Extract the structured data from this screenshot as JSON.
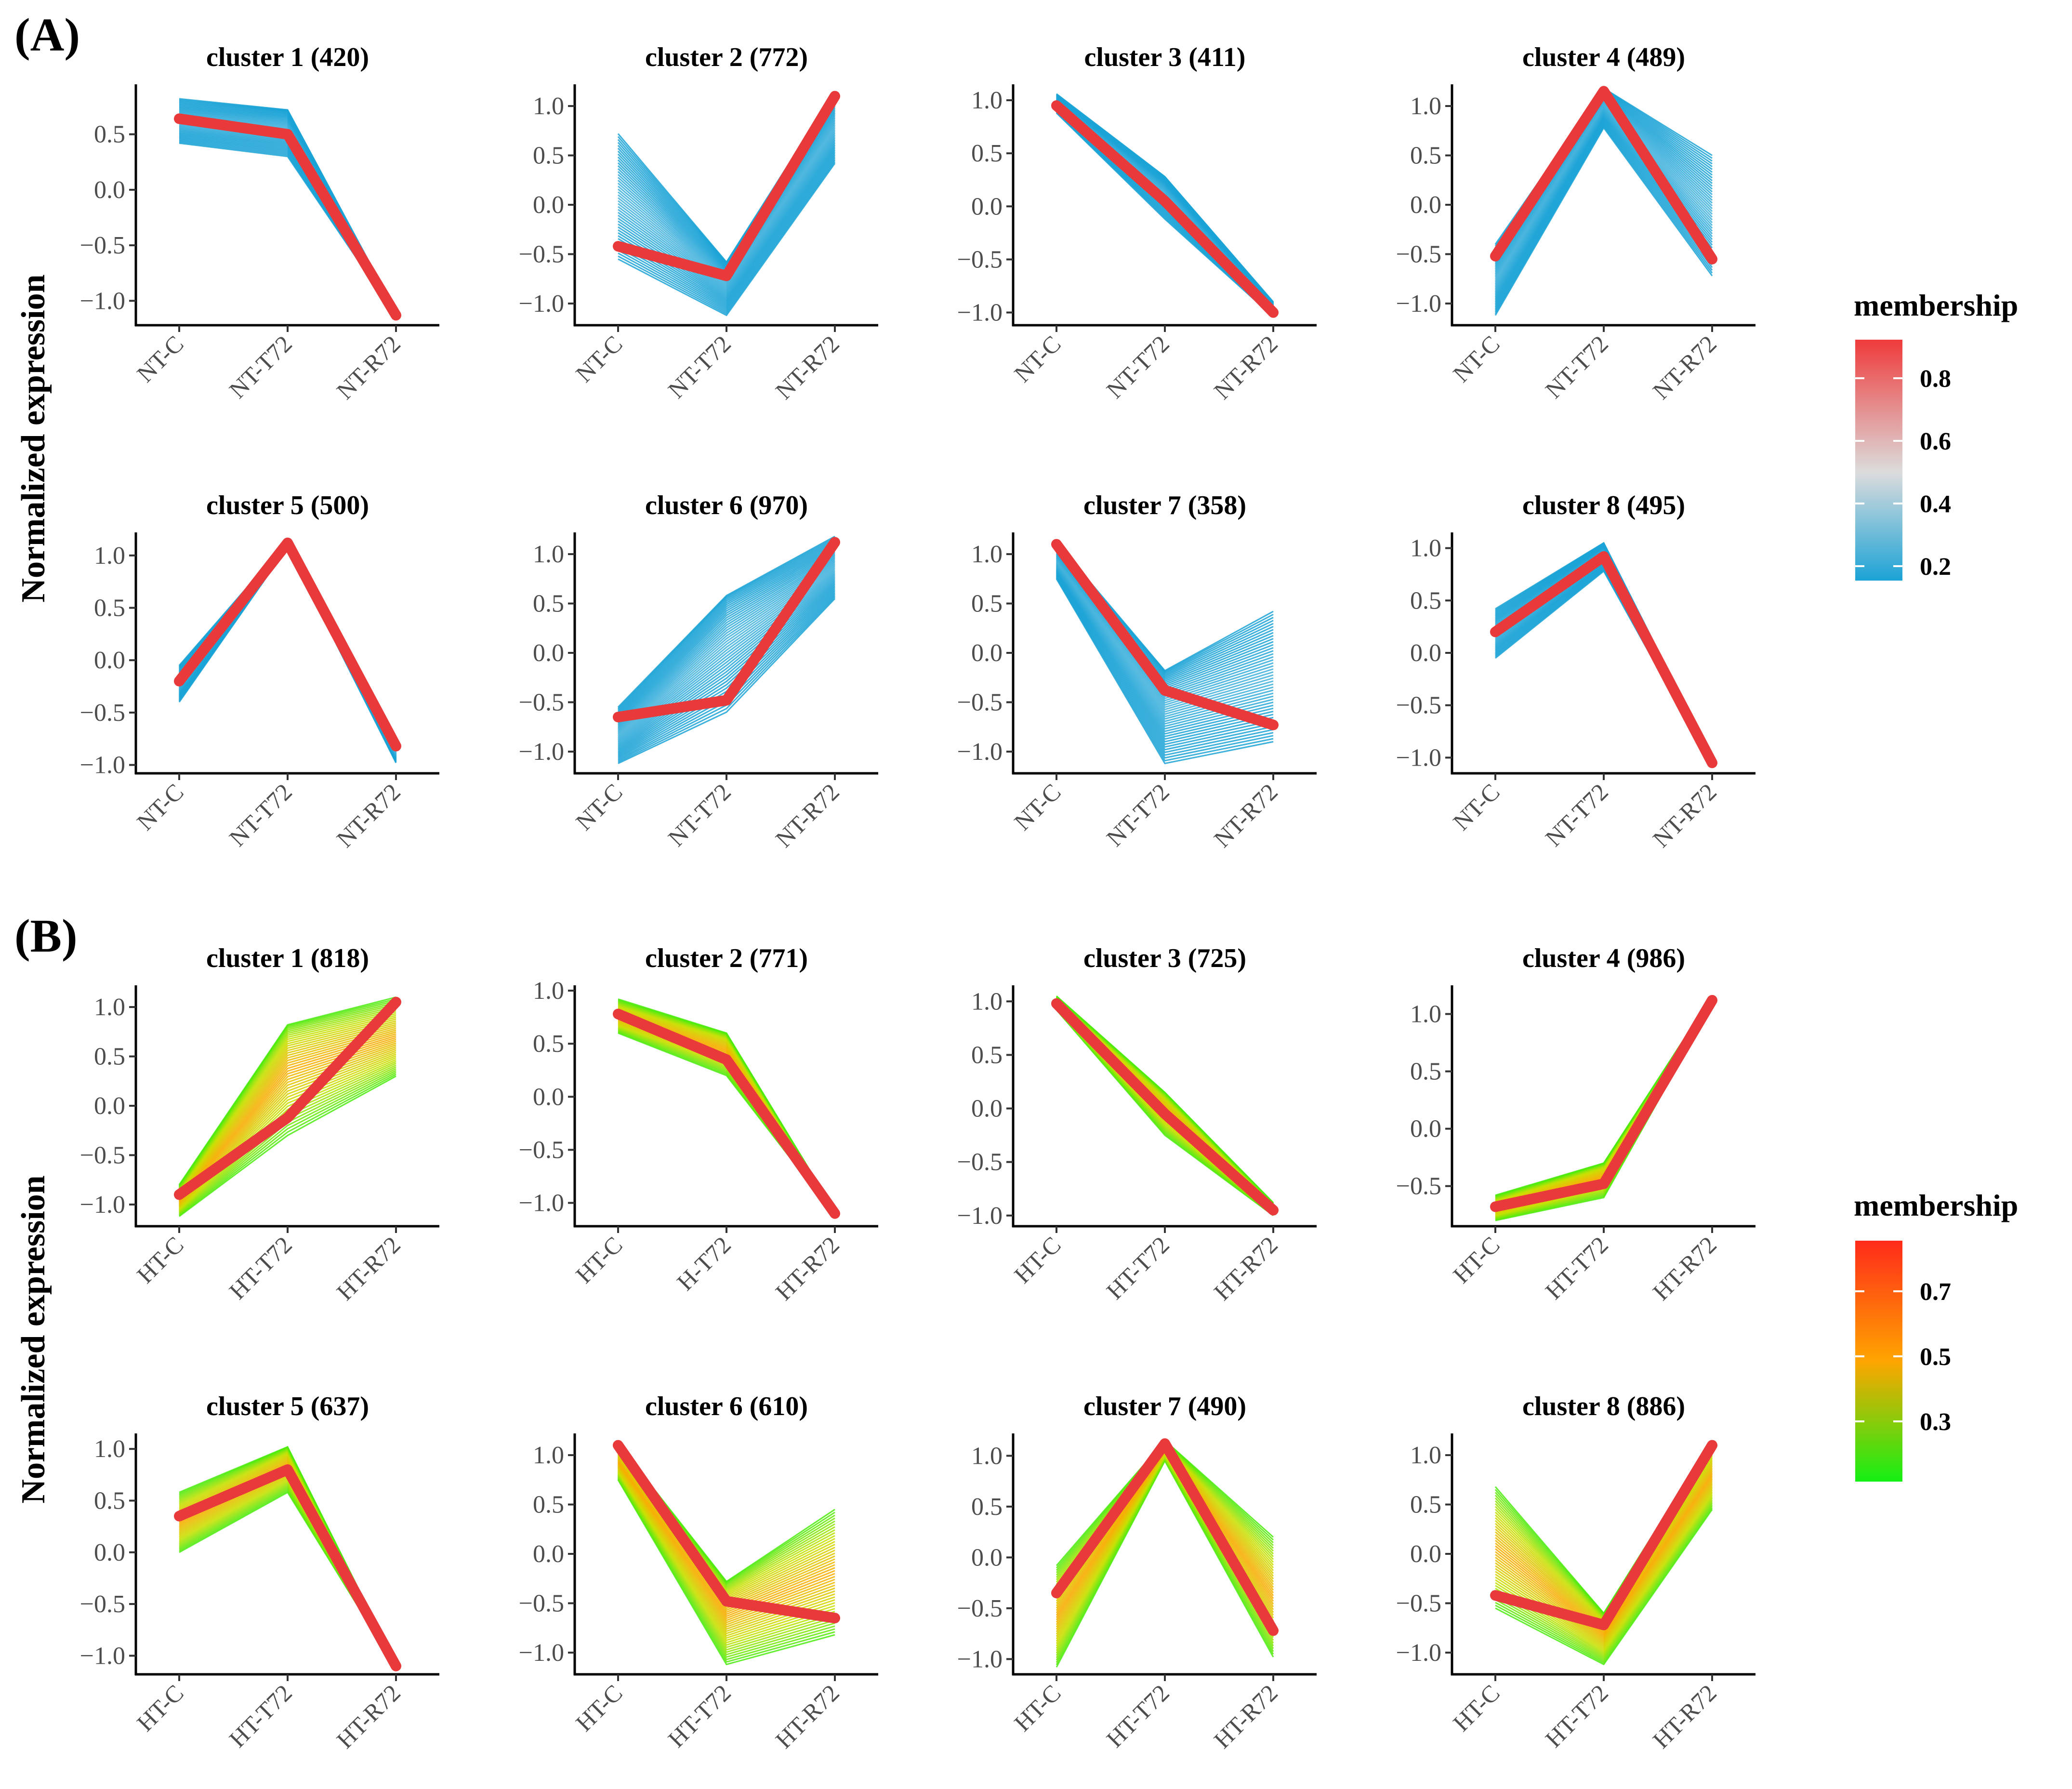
{
  "figure": {
    "panel_a_label": "(A)",
    "panel_b_label": "(B)",
    "ylabel": "Normalized expression",
    "legend_title": "membership",
    "legend_a_ticks": [
      "0.8",
      "0.6",
      "0.4",
      "0.2"
    ],
    "legend_b_ticks": [
      "0.7",
      "0.5",
      "0.3"
    ],
    "colors": {
      "a_low": "#1ba3d6",
      "a_mid": "#dcdcdc",
      "a_high": "#ef3b3b",
      "b_low": "#14f014",
      "b_mid": "#ffa500",
      "b_high": "#ff2a1a",
      "center": "#e83a3a"
    }
  },
  "chart_data": [
    {
      "type": "line",
      "panel": "A",
      "title": "cluster 1 (420)",
      "categories": [
        "NT-C",
        "NT-T72",
        "NT-R72"
      ],
      "yticks": [
        0.5,
        0.0,
        -0.5,
        -1.0
      ],
      "ytick_labels": [
        "0.5",
        "0.0",
        "−0.5",
        "−1.0"
      ],
      "ylim": [
        -1.22,
        0.95
      ],
      "center": [
        0.64,
        0.5,
        -1.13
      ],
      "lows": [
        0.42,
        0.3,
        -1.14
      ],
      "highs": [
        0.82,
        0.72,
        -1.1
      ]
    },
    {
      "type": "line",
      "panel": "A",
      "title": "cluster 2 (772)",
      "categories": [
        "NT-C",
        "NT-T72",
        "NT-R72"
      ],
      "yticks": [
        1.0,
        0.5,
        0.0,
        -0.5,
        -1.0
      ],
      "ytick_labels": [
        "1.0",
        "0.5",
        "0.0",
        "−0.5",
        "−1.0"
      ],
      "ylim": [
        -1.22,
        1.22
      ],
      "center": [
        -0.42,
        -0.72,
        1.1
      ],
      "lows": [
        -0.55,
        -1.12,
        0.42
      ],
      "highs": [
        0.72,
        -0.58,
        1.15
      ]
    },
    {
      "type": "line",
      "panel": "A",
      "title": "cluster 3 (411)",
      "categories": [
        "NT-C",
        "NT-T72",
        "NT-R72"
      ],
      "yticks": [
        1.0,
        0.5,
        0.0,
        -0.5,
        -1.0
      ],
      "ytick_labels": [
        "1.0",
        "0.5",
        "0.0",
        "−0.5",
        "−1.0"
      ],
      "ylim": [
        -1.12,
        1.15
      ],
      "center": [
        0.95,
        0.05,
        -1.0
      ],
      "lows": [
        0.88,
        -0.12,
        -1.04
      ],
      "highs": [
        1.06,
        0.28,
        -0.9
      ]
    },
    {
      "type": "line",
      "panel": "A",
      "title": "cluster 4 (489)",
      "categories": [
        "NT-C",
        "NT-T72",
        "NT-R72"
      ],
      "yticks": [
        1.0,
        0.5,
        0.0,
        -0.5,
        -1.0
      ],
      "ytick_labels": [
        "1.0",
        "0.5",
        "0.0",
        "−0.5",
        "−1.0"
      ],
      "ylim": [
        -1.22,
        1.22
      ],
      "center": [
        -0.52,
        1.15,
        -0.55
      ],
      "lows": [
        -1.12,
        0.78,
        -0.72
      ],
      "highs": [
        -0.4,
        1.18,
        0.5
      ]
    },
    {
      "type": "line",
      "panel": "A",
      "title": "cluster 5 (500)",
      "categories": [
        "NT-C",
        "NT-T72",
        "NT-R72"
      ],
      "yticks": [
        1.0,
        0.5,
        0.0,
        -0.5,
        -1.0
      ],
      "ytick_labels": [
        "1.0",
        "0.5",
        "0.0",
        "−0.5",
        "−1.0"
      ],
      "ylim": [
        -1.08,
        1.22
      ],
      "center": [
        -0.2,
        1.12,
        -0.82
      ],
      "lows": [
        -0.4,
        1.08,
        -0.98
      ],
      "highs": [
        -0.05,
        1.14,
        -0.78
      ]
    },
    {
      "type": "line",
      "panel": "A",
      "title": "cluster 6 (970)",
      "categories": [
        "NT-C",
        "NT-T72",
        "NT-R72"
      ],
      "yticks": [
        1.0,
        0.5,
        0.0,
        -0.5,
        -1.0
      ],
      "ytick_labels": [
        "1.0",
        "0.5",
        "0.0",
        "−0.5",
        "−1.0"
      ],
      "ylim": [
        -1.22,
        1.22
      ],
      "center": [
        -0.65,
        -0.48,
        1.12
      ],
      "lows": [
        -1.12,
        -0.6,
        0.55
      ],
      "highs": [
        -0.55,
        0.58,
        1.18
      ]
    },
    {
      "type": "line",
      "panel": "A",
      "title": "cluster 7 (358)",
      "categories": [
        "NT-C",
        "NT-T72",
        "NT-R72"
      ],
      "yticks": [
        1.0,
        0.5,
        0.0,
        -0.5,
        -1.0
      ],
      "ytick_labels": [
        "1.0",
        "0.5",
        "0.0",
        "−0.5",
        "−1.0"
      ],
      "ylim": [
        -1.22,
        1.22
      ],
      "center": [
        1.1,
        -0.38,
        -0.73
      ],
      "lows": [
        0.75,
        -1.12,
        -0.9
      ],
      "highs": [
        1.12,
        -0.18,
        0.42
      ]
    },
    {
      "type": "line",
      "panel": "A",
      "title": "cluster 8 (495)",
      "categories": [
        "NT-C",
        "NT-T72",
        "NT-R72"
      ],
      "yticks": [
        1.0,
        0.5,
        0.0,
        -0.5,
        -1.0
      ],
      "ytick_labels": [
        "1.0",
        "0.5",
        "0.0",
        "−0.5",
        "−1.0"
      ],
      "ylim": [
        -1.15,
        1.15
      ],
      "center": [
        0.2,
        0.92,
        -1.05
      ],
      "lows": [
        -0.05,
        0.78,
        -1.08
      ],
      "highs": [
        0.42,
        1.05,
        -1.0
      ]
    },
    {
      "type": "line",
      "panel": "B",
      "title": "cluster 1 (818)",
      "categories": [
        "HT-C",
        "HT-T72",
        "HT-R72"
      ],
      "yticks": [
        1.0,
        0.5,
        0.0,
        -0.5,
        -1.0
      ],
      "ytick_labels": [
        "1.0",
        "0.5",
        "0.0",
        "−0.5",
        "−1.0"
      ],
      "ylim": [
        -1.22,
        1.22
      ],
      "center": [
        -0.9,
        -0.12,
        1.05
      ],
      "lows": [
        -1.12,
        -0.3,
        0.3
      ],
      "highs": [
        -0.8,
        0.82,
        1.1
      ]
    },
    {
      "type": "line",
      "panel": "B",
      "title": "cluster 2 (771)",
      "categories": [
        "HT-C",
        "H-T72",
        "HT-R72"
      ],
      "yticks": [
        1.0,
        0.5,
        0.0,
        -0.5,
        -1.0
      ],
      "ytick_labels": [
        "1.0",
        "0.5",
        "0.0",
        "−0.5",
        "−1.0"
      ],
      "ylim": [
        -1.22,
        1.05
      ],
      "center": [
        0.78,
        0.35,
        -1.1
      ],
      "lows": [
        0.6,
        0.2,
        -1.12
      ],
      "highs": [
        0.92,
        0.6,
        -1.08
      ]
    },
    {
      "type": "line",
      "panel": "B",
      "title": "cluster 3 (725)",
      "categories": [
        "HT-C",
        "HT-T72",
        "HT-R72"
      ],
      "yticks": [
        1.0,
        0.5,
        0.0,
        -0.5,
        -1.0
      ],
      "ytick_labels": [
        "1.0",
        "0.5",
        "0.0",
        "−0.5",
        "−1.0"
      ],
      "ylim": [
        -1.1,
        1.15
      ],
      "center": [
        0.98,
        -0.05,
        -0.95
      ],
      "lows": [
        0.92,
        -0.25,
        -1.0
      ],
      "highs": [
        1.05,
        0.15,
        -0.88
      ]
    },
    {
      "type": "line",
      "panel": "B",
      "title": "cluster 4 (986)",
      "categories": [
        "HT-C",
        "HT-T72",
        "HT-R72"
      ],
      "yticks": [
        1.0,
        0.5,
        0.0,
        -0.5
      ],
      "ytick_labels": [
        "1.0",
        "0.5",
        "0.0",
        "−0.5"
      ],
      "ylim": [
        -0.85,
        1.25
      ],
      "center": [
        -0.68,
        -0.48,
        1.12
      ],
      "lows": [
        -0.8,
        -0.6,
        1.08
      ],
      "highs": [
        -0.58,
        -0.3,
        1.16
      ]
    },
    {
      "type": "line",
      "panel": "B",
      "title": "cluster 5 (637)",
      "categories": [
        "HT-C",
        "HT-T72",
        "HT-R72"
      ],
      "yticks": [
        1.0,
        0.5,
        0.0,
        -0.5,
        -1.0
      ],
      "ytick_labels": [
        "1.0",
        "0.5",
        "0.0",
        "−0.5",
        "−1.0"
      ],
      "ylim": [
        -1.18,
        1.15
      ],
      "center": [
        0.35,
        0.8,
        -1.1
      ],
      "lows": [
        0.0,
        0.58,
        -1.12
      ],
      "highs": [
        0.58,
        1.02,
        -1.08
      ]
    },
    {
      "type": "line",
      "panel": "B",
      "title": "cluster 6 (610)",
      "categories": [
        "HT-C",
        "HT-T72",
        "HT-R72"
      ],
      "yticks": [
        1.0,
        0.5,
        0.0,
        -0.5,
        -1.0
      ],
      "ytick_labels": [
        "1.0",
        "0.5",
        "0.0",
        "−0.5",
        "−1.0"
      ],
      "ylim": [
        -1.22,
        1.22
      ],
      "center": [
        1.1,
        -0.48,
        -0.65
      ],
      "lows": [
        0.75,
        -1.12,
        -0.82
      ],
      "highs": [
        1.12,
        -0.28,
        0.45
      ]
    },
    {
      "type": "line",
      "panel": "B",
      "title": "cluster 7 (490)",
      "categories": [
        "HT-C",
        "HT-T72",
        "HT-R72"
      ],
      "yticks": [
        1.0,
        0.5,
        0.0,
        -0.5,
        -1.0
      ],
      "ytick_labels": [
        "1.0",
        "0.5",
        "0.0",
        "−0.5",
        "−1.0"
      ],
      "ylim": [
        -1.15,
        1.22
      ],
      "center": [
        -0.35,
        1.12,
        -0.72
      ],
      "lows": [
        -1.08,
        0.95,
        -0.98
      ],
      "highs": [
        -0.08,
        1.15,
        0.2
      ]
    },
    {
      "type": "line",
      "panel": "B",
      "title": "cluster 8 (886)",
      "categories": [
        "HT-C",
        "HT-T72",
        "HT-R72"
      ],
      "yticks": [
        1.0,
        0.5,
        0.0,
        -0.5,
        -1.0
      ],
      "ytick_labels": [
        "1.0",
        "0.5",
        "0.0",
        "−0.5",
        "−1.0"
      ],
      "ylim": [
        -1.22,
        1.22
      ],
      "center": [
        -0.42,
        -0.72,
        1.1
      ],
      "lows": [
        -0.55,
        -1.12,
        0.45
      ],
      "highs": [
        0.68,
        -0.6,
        1.15
      ]
    }
  ]
}
